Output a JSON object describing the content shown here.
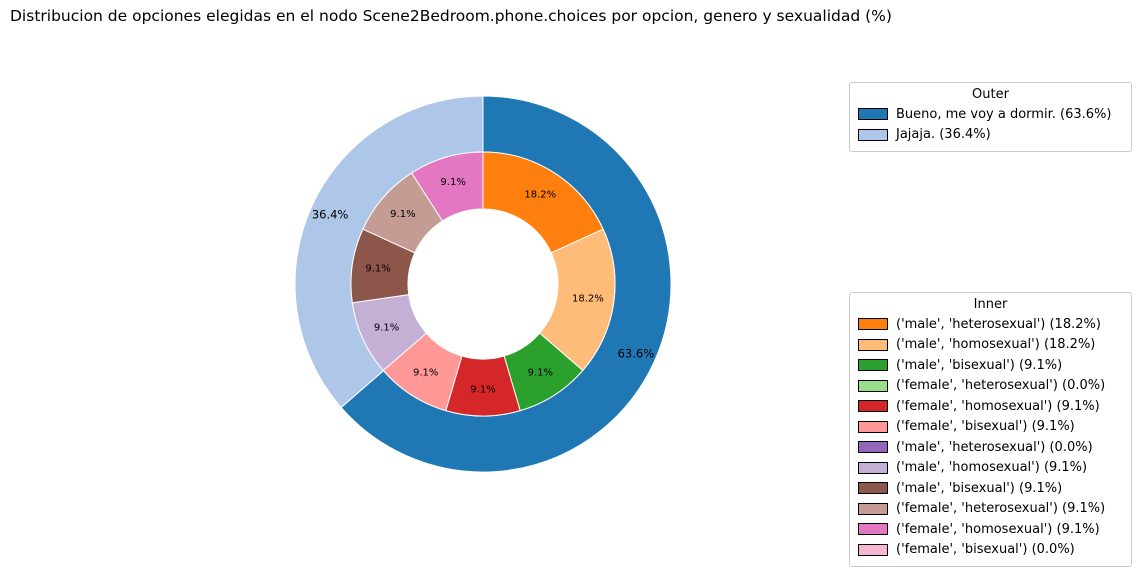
{
  "chart_data": {
    "type": "donut",
    "title": "Distribucion de opciones elegidas en el nodo Scene2Bedroom.phone.choices por opcion, genero y sexualidad (%)",
    "outer": {
      "legend_title": "Outer",
      "slices": [
        {
          "label": "Bueno, me voy a dormir.",
          "legend": "Bueno, me voy a dormir. (63.6%)",
          "value": 63.6,
          "pct_label": "63.6%",
          "color": "#1f77b4"
        },
        {
          "label": "Jajaja.",
          "legend": "Jajaja. (36.4%)",
          "value": 36.4,
          "pct_label": "36.4%",
          "color": "#aec7e8"
        }
      ]
    },
    "inner": {
      "legend_title": "Inner",
      "slices": [
        {
          "legend": "('male', 'heterosexual') (18.2%)",
          "value": 18.2,
          "pct_label": "18.2%",
          "color": "#ff7f0e"
        },
        {
          "legend": "('male', 'homosexual') (18.2%)",
          "value": 18.2,
          "pct_label": "18.2%",
          "color": "#ffbb78"
        },
        {
          "legend": "('male', 'bisexual') (9.1%)",
          "value": 9.1,
          "pct_label": "9.1%",
          "color": "#2ca02c"
        },
        {
          "legend": "('female', 'heterosexual') (0.0%)",
          "value": 0.0,
          "pct_label": "",
          "color": "#98df8a"
        },
        {
          "legend": "('female', 'homosexual') (9.1%)",
          "value": 9.1,
          "pct_label": "9.1%",
          "color": "#d62728"
        },
        {
          "legend": "('female', 'bisexual') (9.1%)",
          "value": 9.1,
          "pct_label": "9.1%",
          "color": "#ff9896"
        },
        {
          "legend": "('male', 'heterosexual') (0.0%)",
          "value": 0.0,
          "pct_label": "",
          "color": "#9467bd"
        },
        {
          "legend": "('male', 'homosexual') (9.1%)",
          "value": 9.1,
          "pct_label": "9.1%",
          "color": "#c5b0d5"
        },
        {
          "legend": "('male', 'bisexual') (9.1%)",
          "value": 9.1,
          "pct_label": "9.1%",
          "color": "#8c564b"
        },
        {
          "legend": "('female', 'heterosexual') (9.1%)",
          "value": 9.1,
          "pct_label": "9.1%",
          "color": "#c49c94"
        },
        {
          "legend": "('female', 'homosexual') (9.1%)",
          "value": 9.1,
          "pct_label": "9.1%",
          "color": "#e377c2"
        },
        {
          "legend": "('female', 'bisexual') (0.0%)",
          "value": 0.0,
          "pct_label": "",
          "color": "#f7b6d2"
        }
      ]
    }
  }
}
